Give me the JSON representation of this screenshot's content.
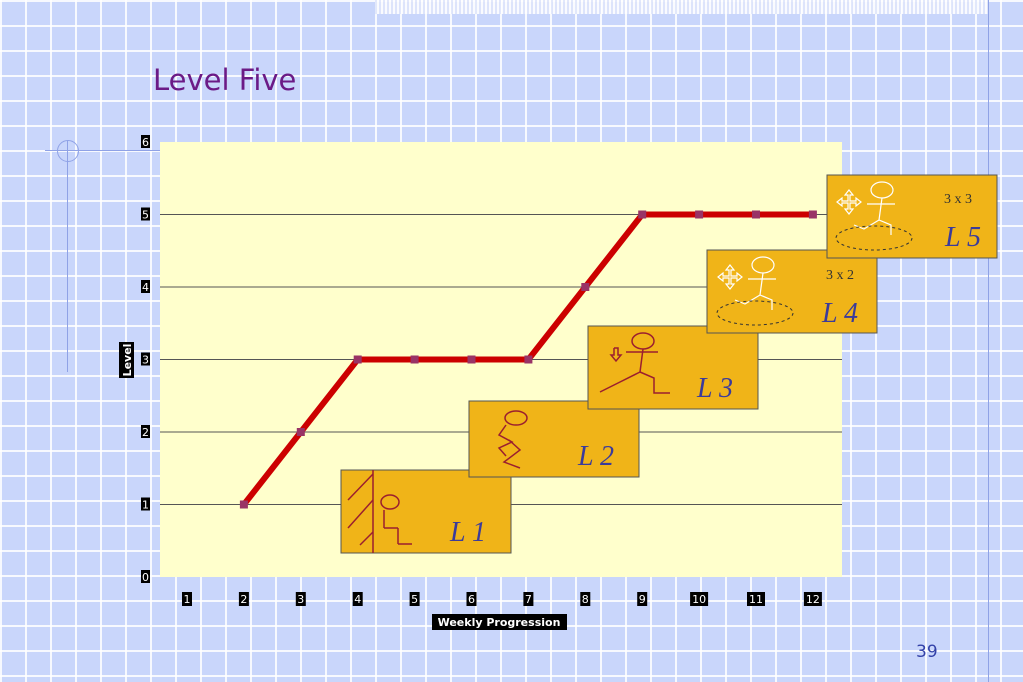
{
  "slide": {
    "title": "Level Five",
    "page_number": "39"
  },
  "colors": {
    "plot_background": "#ffffcc",
    "line": "#cc0000",
    "marker": "#993366",
    "card_fill": "#f0b418",
    "card_text": "#3b3b9b"
  },
  "chart_data": {
    "type": "line",
    "title": "",
    "xlabel": "Weekly Progression",
    "ylabel": "Level",
    "x": [
      2,
      3,
      4,
      5,
      6,
      7,
      8,
      9,
      10,
      11,
      12
    ],
    "x_ticks": [
      "1",
      "2",
      "3",
      "4",
      "5",
      "6",
      "7",
      "8",
      "9",
      "10",
      "11",
      "12"
    ],
    "y_ticks": [
      "0",
      "1",
      "2",
      "3",
      "4",
      "5",
      "6"
    ],
    "ylim": [
      0,
      6
    ],
    "series": [
      {
        "values": [
          1,
          2,
          3,
          3,
          3,
          3,
          4,
          5,
          5,
          5,
          5
        ]
      }
    ],
    "grid": "horizontal",
    "legend": "none"
  },
  "level_cards": [
    {
      "label": "L 1",
      "reps": "",
      "icon": "wall-sit-figure-icon"
    },
    {
      "label": "L 2",
      "reps": "",
      "icon": "squat-figure-icon"
    },
    {
      "label": "L 3",
      "reps": "",
      "icon": "lunge-down-figure-icon"
    },
    {
      "label": "L 4",
      "reps": "3 x 2",
      "icon": "lunge-move-figure-icon"
    },
    {
      "label": "L 5",
      "reps": "3 x 3",
      "icon": "lunge-move-figure-icon"
    }
  ]
}
